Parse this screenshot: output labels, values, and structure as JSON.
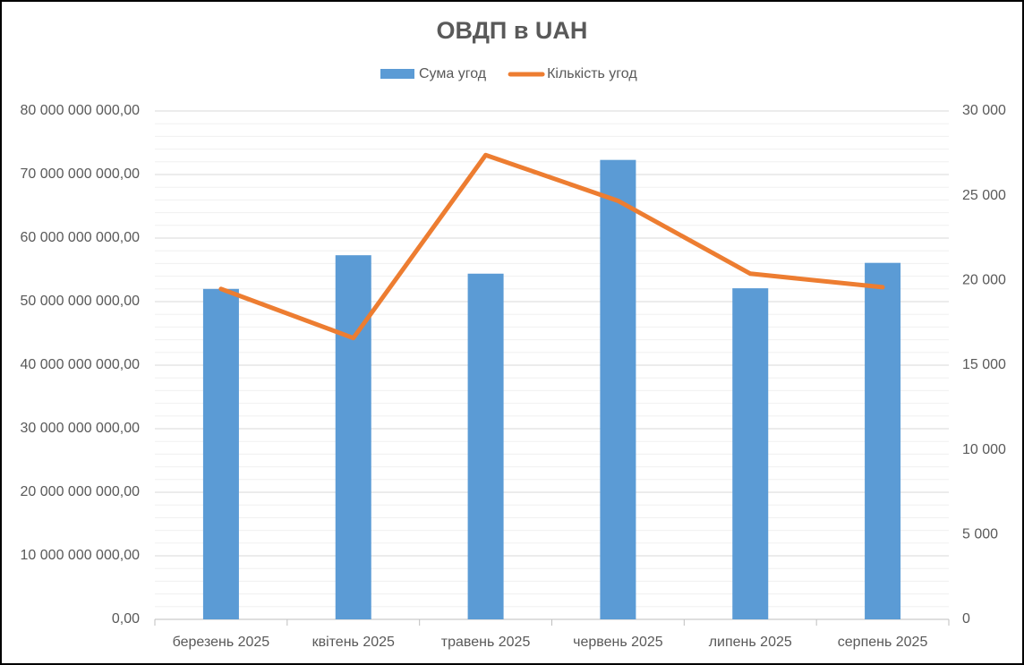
{
  "chart_data": {
    "type": "bar",
    "title": "ОВДП в UAH",
    "categories": [
      "березень 2025",
      "квітень 2025",
      "травень 2025",
      "червень 2025",
      "липень 2025",
      "серпень 2025"
    ],
    "series": [
      {
        "name": "Сума угод",
        "type": "bar",
        "color": "#5b9bd5",
        "values": [
          52000000000,
          57300000000,
          54400000000,
          72300000000,
          52100000000,
          56100000000
        ]
      },
      {
        "name": "Кількість угод",
        "type": "line",
        "axis": "y2",
        "color": "#ed7d31",
        "values": [
          19500,
          16600,
          27400,
          24700,
          20400,
          19600
        ]
      }
    ],
    "ylim": [
      0,
      80000000000
    ],
    "yticks": [
      {
        "value": 0,
        "label": "0,00"
      },
      {
        "value": 10000000000,
        "label": "10 000 000 000,00"
      },
      {
        "value": 20000000000,
        "label": "20 000 000 000,00"
      },
      {
        "value": 30000000000,
        "label": "30 000 000 000,00"
      },
      {
        "value": 40000000000,
        "label": "40 000 000 000,00"
      },
      {
        "value": 50000000000,
        "label": "50 000 000 000,00"
      },
      {
        "value": 60000000000,
        "label": "60 000 000 000,00"
      },
      {
        "value": 70000000000,
        "label": "70 000 000 000,00"
      },
      {
        "value": 80000000000,
        "label": "80 000 000 000,00"
      }
    ],
    "y2lim": [
      0,
      30000
    ],
    "y2ticks": [
      0,
      {
        "value": 5000,
        "label": "5 000"
      },
      {
        "value": 10000,
        "label": "10 000"
      },
      {
        "value": 15000,
        "label": "15 000"
      },
      {
        "value": 20000,
        "label": "20 000"
      },
      {
        "value": 25000,
        "label": "25 000"
      },
      {
        "value": 30000,
        "label": "30 000"
      }
    ],
    "grid": true,
    "minor_grid_divisions": 5,
    "legend": "top"
  }
}
